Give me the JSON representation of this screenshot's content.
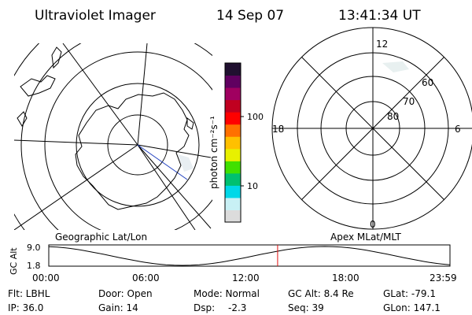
{
  "header": {
    "title": "Ultraviolet Imager",
    "date": "14 Sep 07",
    "time": "13:41:34 UT"
  },
  "colorbar": {
    "label": "photon cm⁻²s⁻¹",
    "ticks": [
      "100",
      "10"
    ],
    "colors": [
      "#dcdcdc",
      "#c8f0f5",
      "#00d8e8",
      "#00c070",
      "#40e000",
      "#e8f000",
      "#ffc000",
      "#ff7000",
      "#ff0000",
      "#c00020",
      "#a00060",
      "#600060",
      "#201030"
    ]
  },
  "left_panel": {
    "caption": "Geographic Lat/Lon"
  },
  "right_panel": {
    "caption": "Apex MLat/MLT",
    "mlt_labels": [
      "12",
      "18",
      "6",
      "0"
    ],
    "mlat_labels": [
      "60",
      "70",
      "80"
    ]
  },
  "timeline": {
    "ylabel": "GC Alt",
    "ymax": "9.0",
    "ymin": "1.8",
    "x_ticks": [
      "00:00",
      "06:00",
      "12:00",
      "18:00",
      "23:59"
    ],
    "marker_time_hours": 13.69
  },
  "footer": {
    "flt": "Flt: LBHL",
    "ip": "IP: 36.0",
    "door": "Door: Open",
    "gain": "Gain: 14",
    "mode": "Mode: Normal",
    "dsp_label": "Dsp:",
    "dsp_value": "-2.3",
    "gc_alt": "GC Alt: 8.4 Re",
    "seq": "Seq: 39",
    "glat": "GLat: -79.1",
    "glon": "GLon: 147.1"
  }
}
